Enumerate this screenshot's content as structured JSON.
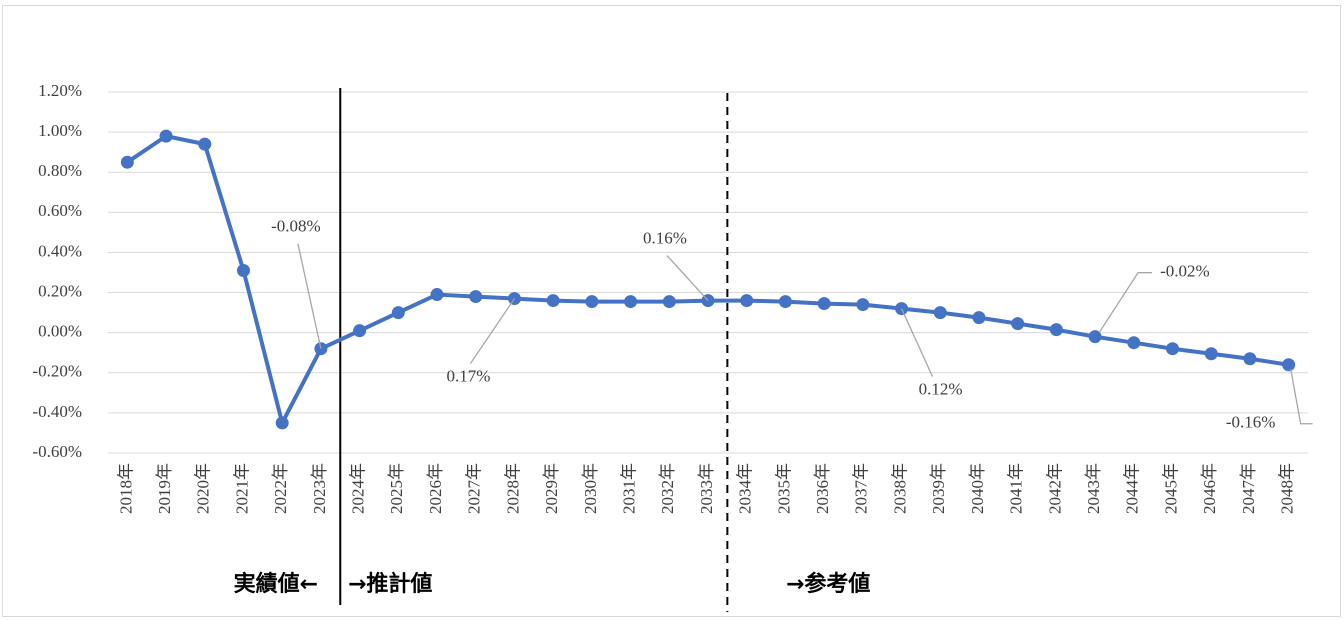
{
  "chart_data": {
    "type": "line",
    "categories": [
      "2018年",
      "2019年",
      "2020年",
      "2021年",
      "2022年",
      "2023年",
      "2024年",
      "2025年",
      "2026年",
      "2027年",
      "2028年",
      "2029年",
      "2030年",
      "2031年",
      "2032年",
      "2033年",
      "2034年",
      "2035年",
      "2036年",
      "2037年",
      "2038年",
      "2039年",
      "2040年",
      "2041年",
      "2042年",
      "2043年",
      "2044年",
      "2045年",
      "2046年",
      "2047年",
      "2048年"
    ],
    "series": [
      {
        "color": "#4472c4",
        "values": [
          0.85,
          0.98,
          0.94,
          0.31,
          -0.45,
          -0.08,
          0.01,
          0.1,
          0.19,
          0.18,
          0.17,
          0.16,
          0.155,
          0.155,
          0.155,
          0.16,
          0.16,
          0.155,
          0.145,
          0.14,
          0.12,
          0.1,
          0.075,
          0.045,
          0.015,
          -0.02,
          -0.05,
          -0.08,
          -0.105,
          -0.13,
          -0.16
        ],
        "value_labels": [
          null,
          null,
          null,
          null,
          null,
          "-0.08%",
          null,
          null,
          null,
          null,
          "0.17%",
          null,
          null,
          null,
          null,
          "0.16%",
          null,
          null,
          null,
          null,
          "0.12%",
          null,
          null,
          null,
          null,
          "-0.02%",
          null,
          null,
          null,
          null,
          "-0.16%"
        ]
      }
    ],
    "ylim": [
      -0.6,
      1.2
    ],
    "yticks": [
      {
        "value": -0.6,
        "label": "-0.60%"
      },
      {
        "value": -0.4,
        "label": "-0.40%"
      },
      {
        "value": -0.2,
        "label": "-0.20%"
      },
      {
        "value": 0,
        "label": "0.00%"
      },
      {
        "value": 0.2,
        "label": "0.20%"
      },
      {
        "value": 0.4,
        "label": "0.40%"
      },
      {
        "value": 0.6,
        "label": "0.60%"
      },
      {
        "value": 0.8,
        "label": "0.80%"
      },
      {
        "value": 1.0,
        "label": "1.00%"
      },
      {
        "value": 1.2,
        "label": "1.20%"
      }
    ],
    "grid": true,
    "annotations": [
      "実績値←",
      "→推計値",
      "→参考値"
    ]
  }
}
